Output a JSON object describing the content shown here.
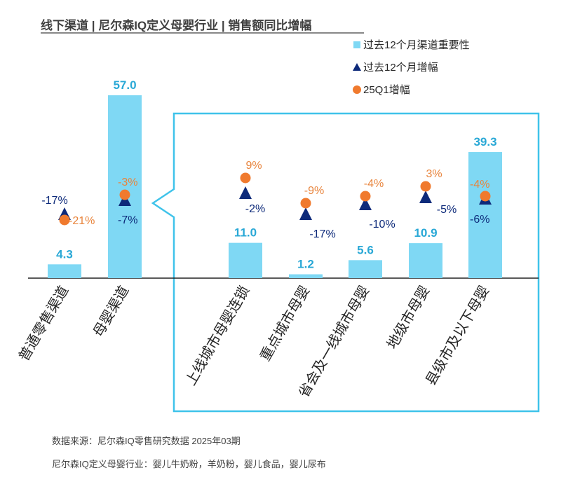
{
  "title": "线下渠道 | 尼尔森IQ定义母婴行业 | 销售额同比增幅",
  "legend": {
    "items": [
      {
        "label": "过去12个月渠道重要性",
        "shape": "bar",
        "color": "#7fd8f4"
      },
      {
        "label": "过去12个月增幅",
        "shape": "triangle",
        "color": "#0d2a7a"
      },
      {
        "label": "25Q1增幅",
        "shape": "circle",
        "color": "#f07a2e"
      }
    ]
  },
  "chart_data": {
    "type": "bar",
    "categories": [
      "普通零售渠道",
      "母婴渠道",
      "上线城市母婴连锁",
      "重点城市母婴",
      "省会及一线城市母婴",
      "地级市母婴",
      "县级市及以下母婴"
    ],
    "series": [
      {
        "name": "过去12个月渠道重要性",
        "type": "bar",
        "values": [
          4.3,
          57.0,
          11.0,
          1.2,
          5.6,
          10.9,
          39.3
        ],
        "labels": [
          "4.3",
          "57.0",
          "11.0",
          "1.2",
          "5.6",
          "10.9",
          "39.3"
        ]
      },
      {
        "name": "过去12个月增幅",
        "type": "scatter",
        "values": [
          -17,
          -7,
          -2,
          -17,
          -10,
          -5,
          -6
        ],
        "labels": [
          "-17%",
          "-7%",
          "-2%",
          "-17%",
          "-10%",
          "-5%",
          "-6%"
        ]
      },
      {
        "name": "25Q1增幅",
        "type": "scatter",
        "values": [
          -21,
          -3,
          9,
          -9,
          -4,
          3,
          -4
        ],
        "labels": [
          "-21%",
          "-3%",
          "9%",
          "-9%",
          "-4%",
          "3%",
          "-4%"
        ]
      }
    ],
    "breakdown": {
      "parent": "母婴渠道",
      "children": [
        "上线城市母婴连锁",
        "重点城市母婴",
        "省会及一线城市母婴",
        "地级市母婴",
        "县级市及以下母婴"
      ]
    },
    "colors": {
      "bar": "#7fd8f4",
      "bar_label": "#29a8d6",
      "triangle": "#0d2a7a",
      "circle": "#f07a2e",
      "circle_label": "#e8843c",
      "frame": "#3fc3ea"
    }
  },
  "footnotes": {
    "source": "数据来源：尼尔森IQ零售研究数据 2025年03期",
    "definition": "尼尔森IQ定义母婴行业：婴儿牛奶粉，羊奶粉，婴儿食品，婴儿尿布"
  }
}
